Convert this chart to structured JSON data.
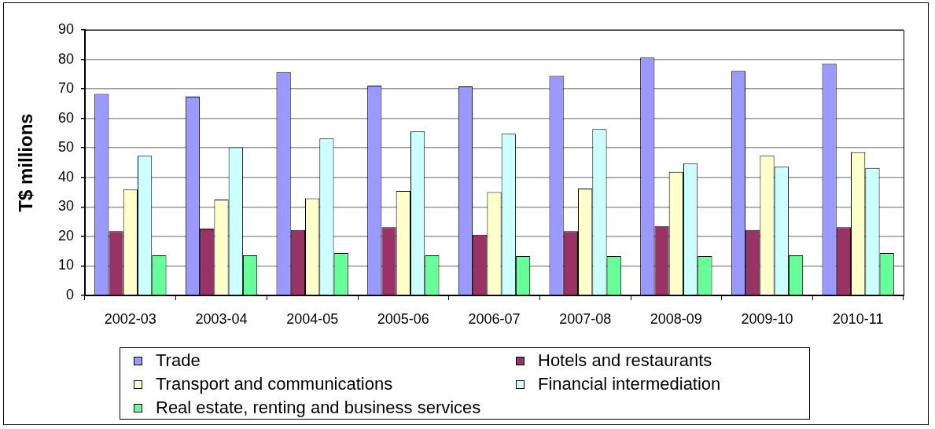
{
  "chart_data": {
    "type": "bar",
    "ylabel": "T$ millions",
    "categories": [
      "2002-03",
      "2003-04",
      "2004-05",
      "2005-06",
      "2006-07",
      "2007-08",
      "2008-09",
      "2009-10",
      "2010-11"
    ],
    "series": [
      {
        "name": "Trade",
        "color": "#9999ff",
        "values": [
          68.3,
          67.4,
          75.7,
          71.1,
          70.8,
          74.4,
          80.6,
          76.1,
          78.5
        ]
      },
      {
        "name": "Hotels and restaurants",
        "color": "#993366",
        "values": [
          21.8,
          22.6,
          22.2,
          23.1,
          20.6,
          21.8,
          23.5,
          22.2,
          23.1
        ]
      },
      {
        "name": "Transport and communications",
        "color": "#ffffcc",
        "values": [
          35.9,
          32.5,
          32.9,
          35.4,
          35.0,
          36.2,
          41.9,
          47.3,
          48.5
        ]
      },
      {
        "name": "Financial intermediation",
        "color": "#ccffff",
        "values": [
          47.3,
          50.2,
          53.2,
          55.6,
          54.8,
          56.4,
          44.8,
          43.6,
          43.2
        ]
      },
      {
        "name": "Real estate, renting and business services",
        "color": "#66ff99",
        "values": [
          13.6,
          13.6,
          14.4,
          13.6,
          13.3,
          13.3,
          13.3,
          13.6,
          14.4
        ]
      }
    ],
    "ylim": [
      0,
      90
    ],
    "yticks": [
      0,
      10,
      20,
      30,
      40,
      50,
      60,
      70,
      80,
      90
    ],
    "grid": "y",
    "legend": "bottom"
  }
}
